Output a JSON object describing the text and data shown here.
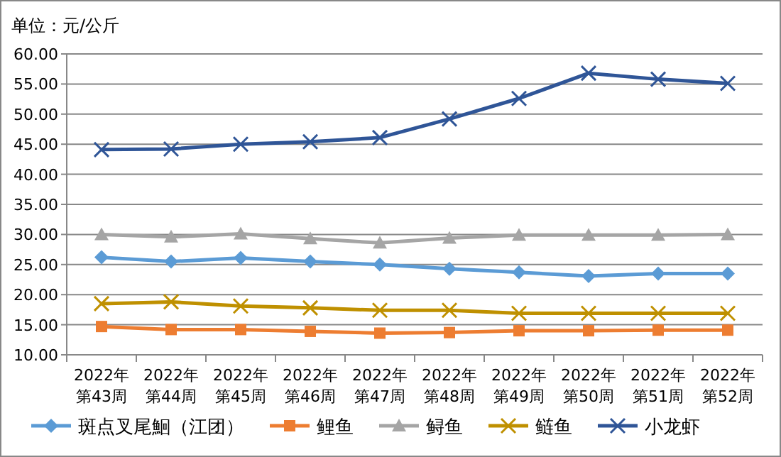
{
  "chart_data": {
    "type": "line",
    "ylabel": "单位：元/公斤",
    "categories": [
      "2022年第43周",
      "2022年第44周",
      "2022年第45周",
      "2022年第46周",
      "2022年第47周",
      "2022年第48周",
      "2022年第49周",
      "2022年第50周",
      "2022年第51周",
      "2022年第52周"
    ],
    "series": [
      {
        "name": "斑点叉尾鮰（江团）",
        "color": "#5b9bd5",
        "marker": "diamond",
        "values": [
          26.2,
          25.5,
          26.1,
          25.5,
          25.0,
          24.3,
          23.7,
          23.1,
          23.5,
          23.5
        ]
      },
      {
        "name": "鲤鱼",
        "color": "#ed7d31",
        "marker": "square",
        "values": [
          14.7,
          14.2,
          14.2,
          13.9,
          13.6,
          13.7,
          14.0,
          14.0,
          14.1,
          14.1
        ]
      },
      {
        "name": "鲟鱼",
        "color": "#a5a5a5",
        "marker": "triangle",
        "values": [
          30.0,
          29.6,
          30.1,
          29.3,
          28.6,
          29.4,
          29.9,
          29.9,
          29.9,
          30.0
        ]
      },
      {
        "name": "鲢鱼",
        "color": "#bf9000",
        "marker": "cross",
        "values": [
          18.5,
          18.8,
          18.1,
          17.8,
          17.4,
          17.4,
          16.9,
          16.9,
          16.9,
          16.9
        ]
      },
      {
        "name": "小龙虾",
        "color": "#2f5597",
        "marker": "cross",
        "values": [
          44.1,
          44.2,
          45.0,
          45.4,
          46.1,
          49.2,
          52.6,
          56.8,
          55.8,
          55.1
        ]
      }
    ],
    "ylim": [
      10,
      60
    ],
    "yticks": [
      {
        "value": 10,
        "label": "10.00"
      },
      {
        "value": 15,
        "label": "15.00"
      },
      {
        "value": 20,
        "label": "20.00"
      },
      {
        "value": 25,
        "label": "25.00"
      },
      {
        "value": 30,
        "label": "30.00"
      },
      {
        "value": 35,
        "label": "35.00"
      },
      {
        "value": 40,
        "label": "40.00"
      },
      {
        "value": 45,
        "label": "45.00"
      },
      {
        "value": 50,
        "label": "50.00"
      },
      {
        "value": 55,
        "label": "55.00"
      },
      {
        "value": 60,
        "label": "60.00"
      }
    ],
    "grid": "y",
    "legend": "bottom"
  }
}
